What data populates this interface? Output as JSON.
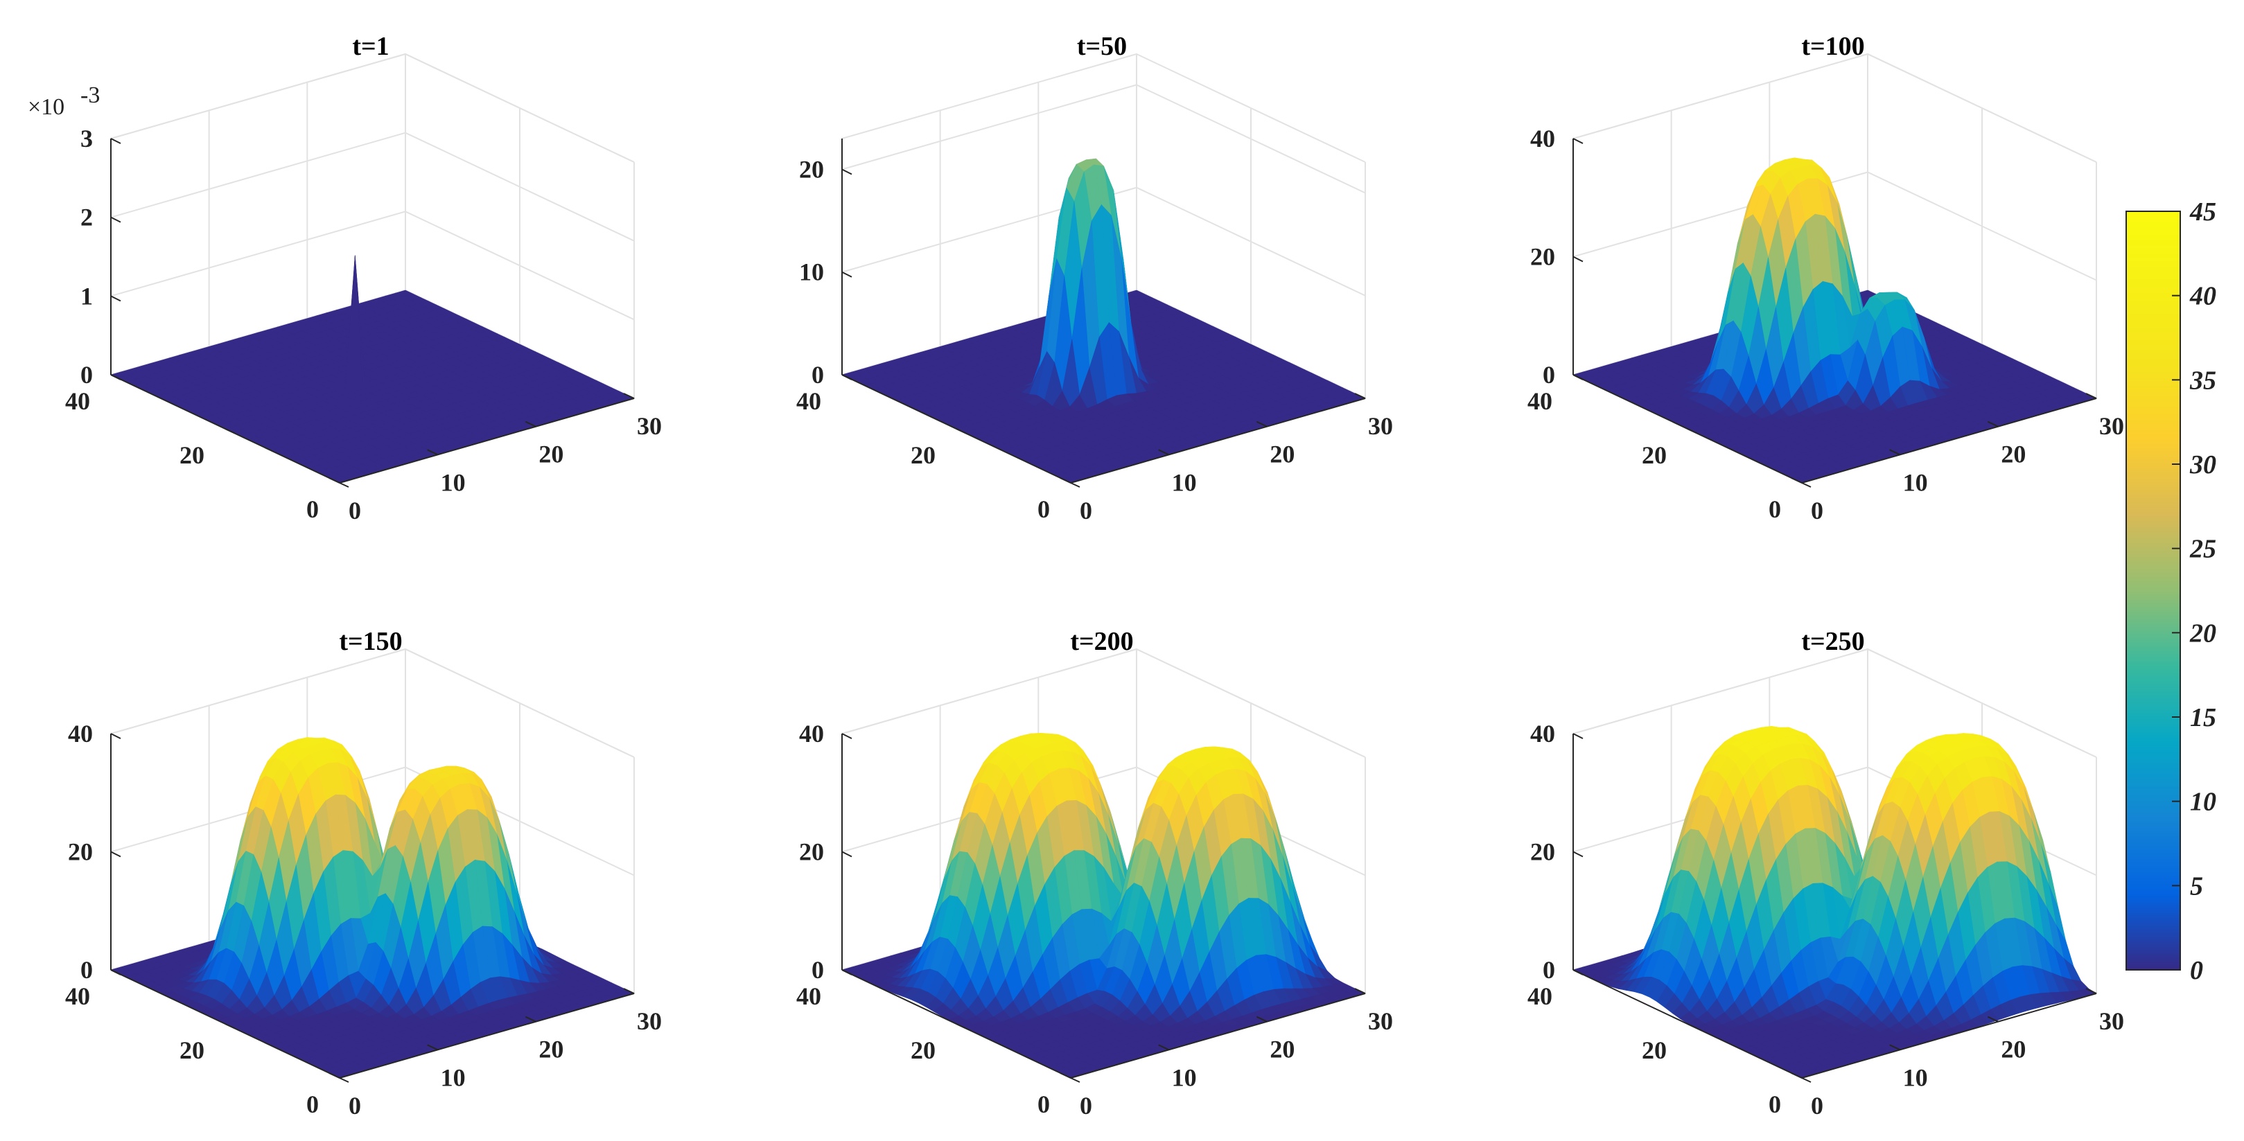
{
  "chart_data": [
    {
      "type": "surface",
      "title": "t=1",
      "zlim": [
        0,
        0.003
      ],
      "zticks": [
        "0",
        "1",
        "2",
        "3"
      ],
      "zexponent": "-3",
      "xticks": [
        "0",
        "10",
        "20",
        "30"
      ],
      "yticks": [
        "0",
        "20",
        "40"
      ],
      "xlim": [
        0,
        30
      ],
      "ylim": [
        0,
        40
      ],
      "peaks": [
        {
          "x": 14,
          "y": 21,
          "height": 0.0025,
          "sigma": 0.35
        }
      ]
    },
    {
      "type": "surface",
      "title": "t=50",
      "zlim": [
        0,
        23
      ],
      "zticks": [
        "0",
        "10",
        "20"
      ],
      "zexponent": "",
      "xticks": [
        "0",
        "10",
        "20",
        "30"
      ],
      "yticks": [
        "0",
        "20",
        "40"
      ],
      "xlim": [
        0,
        30
      ],
      "ylim": [
        0,
        40
      ],
      "peaks": [
        {
          "x": 14,
          "y": 21,
          "height": 22,
          "sigma": 3.0
        }
      ]
    },
    {
      "type": "surface",
      "title": "t=100",
      "zlim": [
        0,
        40
      ],
      "zticks": [
        "0",
        "20",
        "40"
      ],
      "zexponent": "",
      "xticks": [
        "0",
        "10",
        "20",
        "30"
      ],
      "yticks": [
        "0",
        "20",
        "40"
      ],
      "xlim": [
        0,
        30
      ],
      "ylim": [
        0,
        40
      ],
      "peaks": [
        {
          "x": 13,
          "y": 24,
          "height": 37,
          "sigma": 5.0
        },
        {
          "x": 18,
          "y": 16,
          "height": 16,
          "sigma": 3.0
        }
      ]
    },
    {
      "type": "surface",
      "title": "t=150",
      "zlim": [
        0,
        40
      ],
      "zticks": [
        "0",
        "20",
        "40"
      ],
      "zexponent": "",
      "xticks": [
        "0",
        "10",
        "20",
        "30"
      ],
      "yticks": [
        "0",
        "20",
        "40"
      ],
      "xlim": [
        0,
        30
      ],
      "ylim": [
        0,
        40
      ],
      "peaks": [
        {
          "x": 12,
          "y": 26,
          "height": 39,
          "sigma": 6.0
        },
        {
          "x": 20,
          "y": 16,
          "height": 35,
          "sigma": 5.5
        }
      ]
    },
    {
      "type": "surface",
      "title": "t=200",
      "zlim": [
        0,
        40
      ],
      "zticks": [
        "0",
        "20",
        "40"
      ],
      "zexponent": "",
      "xticks": [
        "0",
        "10",
        "20",
        "30"
      ],
      "yticks": [
        "0",
        "20",
        "40"
      ],
      "xlim": [
        0,
        30
      ],
      "ylim": [
        0,
        40
      ],
      "peaks": [
        {
          "x": 12,
          "y": 27,
          "height": 39,
          "sigma": 7.0
        },
        {
          "x": 22,
          "y": 14,
          "height": 38,
          "sigma": 6.5
        }
      ]
    },
    {
      "type": "surface",
      "title": "t=250",
      "zlim": [
        0,
        40
      ],
      "zticks": [
        "0",
        "20",
        "40"
      ],
      "zexponent": "",
      "xticks": [
        "0",
        "10",
        "20",
        "30"
      ],
      "yticks": [
        "0",
        "20",
        "40"
      ],
      "xlim": [
        0,
        30
      ],
      "ylim": [
        0,
        40
      ],
      "peaks": [
        {
          "x": 12,
          "y": 27,
          "height": 40,
          "sigma": 7.5
        },
        {
          "x": 23,
          "y": 13,
          "height": 40,
          "sigma": 7.5
        }
      ]
    }
  ],
  "colorbar": {
    "min": 0,
    "max": 45,
    "ticks": [
      "0",
      "5",
      "10",
      "15",
      "20",
      "25",
      "30",
      "35",
      "40",
      "45"
    ],
    "colormap": "parula"
  }
}
